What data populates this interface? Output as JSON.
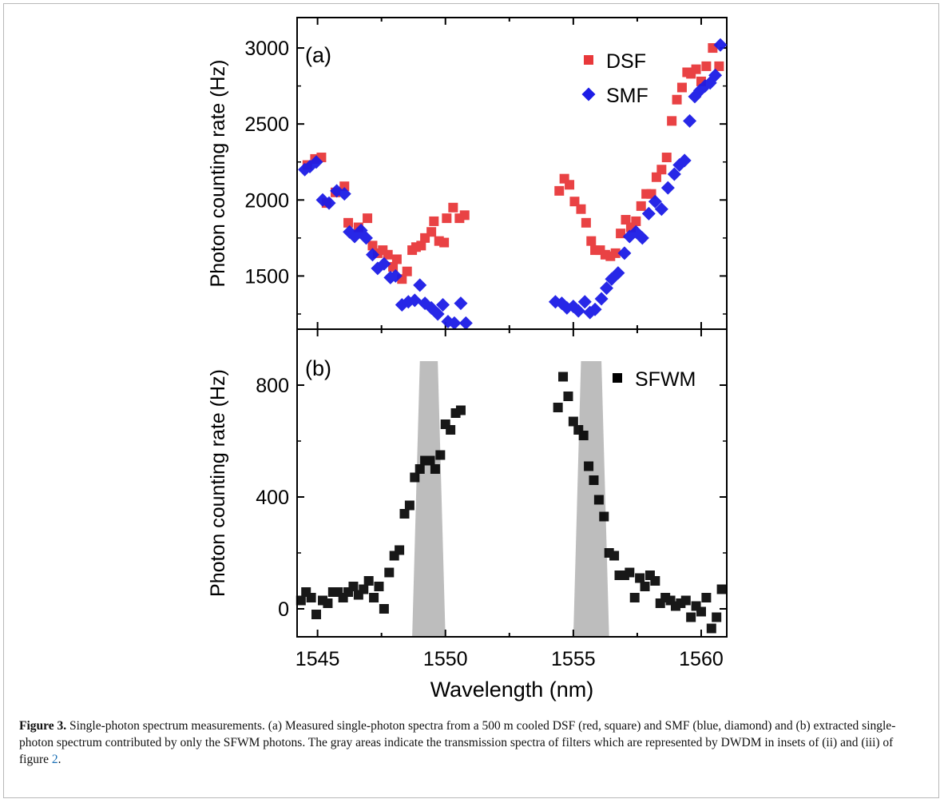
{
  "figure": {
    "caption_label": "Figure 3.",
    "caption_text_1": " Single-photon spectrum measurements. (a) Measured single-photon spectra from a 500 m cooled DSF (red, square) and SMF (blue, diamond) and (b) extracted single-photon spectrum contributed by only the SFWM photons. The gray areas indicate the transmission spectra of filters which are represented by DWDM in insets of (ii) and (iii) of figure ",
    "caption_ref": "2",
    "caption_text_2": "."
  },
  "chart_data": [
    {
      "type": "scatter",
      "panel_label": "(a)",
      "xlabel": "Wavelength (nm)",
      "ylabel": "Photon counting rate (Hz)",
      "xlim": [
        1544.2,
        1561.0
      ],
      "ylim": [
        1150,
        3200
      ],
      "xticks": [
        1545,
        1550,
        1555,
        1560
      ],
      "yticks": [
        1500,
        2000,
        2500,
        3000
      ],
      "grid": false,
      "legend_position": "top-right",
      "series": [
        {
          "name": "DSF",
          "marker": "square",
          "color": "#e8383a",
          "x": [
            1544.6,
            1544.9,
            1545.15,
            1545.35,
            1545.7,
            1546.05,
            1546.2,
            1546.6,
            1546.95,
            1547.15,
            1547.35,
            1547.55,
            1547.75,
            1547.95,
            1548.1,
            1548.3,
            1548.5,
            1548.7,
            1548.85,
            1549.05,
            1549.2,
            1549.45,
            1549.55,
            1549.75,
            1549.95,
            1550.05,
            1550.3,
            1550.55,
            1550.75,
            1554.45,
            1554.65,
            1554.85,
            1555.05,
            1555.3,
            1555.5,
            1555.7,
            1555.85,
            1556.05,
            1556.25,
            1556.45,
            1556.65,
            1556.85,
            1557.05,
            1557.25,
            1557.45,
            1557.65,
            1557.85,
            1558.05,
            1558.25,
            1558.45,
            1558.65,
            1558.85,
            1559.05,
            1559.25,
            1559.45,
            1559.6,
            1559.8,
            1560.0,
            1560.2,
            1560.45,
            1560.7
          ],
          "y": [
            2230,
            2270,
            2280,
            1980,
            2050,
            2090,
            1850,
            1820,
            1880,
            1700,
            1650,
            1670,
            1640,
            1560,
            1610,
            1480,
            1530,
            1670,
            1690,
            1700,
            1750,
            1790,
            1860,
            1730,
            1720,
            1880,
            1950,
            1880,
            1900,
            2060,
            2140,
            2100,
            1990,
            1940,
            1850,
            1730,
            1670,
            1670,
            1640,
            1630,
            1650,
            1780,
            1870,
            1820,
            1860,
            1960,
            2040,
            2040,
            2150,
            2200,
            2280,
            2520,
            2660,
            2740,
            2840,
            2830,
            2860,
            2780,
            2880,
            3000,
            2880
          ]
        },
        {
          "name": "SMF",
          "marker": "diamond",
          "color": "#1c1ce6",
          "x": [
            1544.5,
            1544.7,
            1544.95,
            1545.2,
            1545.45,
            1545.75,
            1546.05,
            1546.25,
            1546.45,
            1546.7,
            1546.9,
            1547.15,
            1547.35,
            1547.6,
            1547.85,
            1548.05,
            1548.3,
            1548.55,
            1548.8,
            1549.0,
            1549.2,
            1549.45,
            1549.7,
            1549.9,
            1550.1,
            1550.35,
            1550.6,
            1550.8,
            1554.3,
            1554.55,
            1554.75,
            1555.0,
            1555.2,
            1555.45,
            1555.65,
            1555.85,
            1556.1,
            1556.3,
            1556.5,
            1556.75,
            1557.0,
            1557.2,
            1557.45,
            1557.7,
            1557.95,
            1558.2,
            1558.45,
            1558.7,
            1558.95,
            1559.15,
            1559.35,
            1559.55,
            1559.75,
            1559.95,
            1560.15,
            1560.35,
            1560.55,
            1560.75
          ],
          "y": [
            2200,
            2220,
            2250,
            2000,
            1980,
            2060,
            2040,
            1790,
            1760,
            1800,
            1750,
            1640,
            1550,
            1580,
            1490,
            1500,
            1310,
            1330,
            1340,
            1440,
            1320,
            1290,
            1250,
            1310,
            1200,
            1190,
            1320,
            1190,
            1330,
            1320,
            1290,
            1300,
            1270,
            1330,
            1260,
            1280,
            1350,
            1420,
            1480,
            1520,
            1650,
            1760,
            1790,
            1750,
            1910,
            1990,
            1940,
            2080,
            2170,
            2230,
            2260,
            2520,
            2680,
            2720,
            2750,
            2770,
            2820,
            3020
          ]
        }
      ]
    },
    {
      "type": "scatter",
      "panel_label": "(b)",
      "xlabel": "Wavelength (nm)",
      "ylabel": "Photon counting rate (Hz)",
      "xlim": [
        1544.2,
        1561.0
      ],
      "ylim": [
        -100,
        1000
      ],
      "xticks": [
        1545,
        1550,
        1555,
        1560
      ],
      "yticks": [
        0,
        400,
        800
      ],
      "grid": false,
      "legend_position": "top-right",
      "shaded_bands": [
        {
          "x_bottom": [
            1548.7,
            1550.0
          ],
          "x_top": [
            1549.0,
            1549.7
          ],
          "color": "#bdbdbd"
        },
        {
          "x_bottom": [
            1555.0,
            1556.4
          ],
          "x_top": [
            1555.3,
            1556.1
          ],
          "color": "#bdbdbd"
        }
      ],
      "series": [
        {
          "name": "SFWM",
          "marker": "square",
          "color": "#000000",
          "x": [
            1544.35,
            1544.55,
            1544.75,
            1544.95,
            1545.2,
            1545.4,
            1545.6,
            1545.8,
            1546.0,
            1546.2,
            1546.4,
            1546.6,
            1546.8,
            1547.0,
            1547.2,
            1547.4,
            1547.6,
            1547.8,
            1548.0,
            1548.2,
            1548.4,
            1548.6,
            1548.8,
            1549.0,
            1549.2,
            1549.4,
            1549.6,
            1549.8,
            1550.0,
            1550.2,
            1550.4,
            1550.6,
            1554.4,
            1554.6,
            1554.8,
            1555.0,
            1555.2,
            1555.4,
            1555.6,
            1555.8,
            1556.0,
            1556.2,
            1556.4,
            1556.6,
            1556.8,
            1557.0,
            1557.2,
            1557.4,
            1557.6,
            1557.8,
            1558.0,
            1558.2,
            1558.4,
            1558.6,
            1558.8,
            1559.0,
            1559.2,
            1559.4,
            1559.6,
            1559.8,
            1560.0,
            1560.2,
            1560.4,
            1560.6,
            1560.8
          ],
          "y": [
            30,
            60,
            40,
            -20,
            30,
            20,
            60,
            60,
            40,
            60,
            80,
            50,
            70,
            100,
            40,
            80,
            0,
            130,
            190,
            210,
            340,
            370,
            470,
            500,
            530,
            530,
            500,
            550,
            660,
            640,
            700,
            710,
            720,
            830,
            760,
            670,
            640,
            620,
            510,
            460,
            390,
            330,
            200,
            190,
            120,
            120,
            130,
            40,
            110,
            80,
            120,
            100,
            20,
            40,
            30,
            10,
            20,
            30,
            -30,
            10,
            -10,
            40,
            -70,
            -30,
            70
          ]
        }
      ]
    }
  ]
}
